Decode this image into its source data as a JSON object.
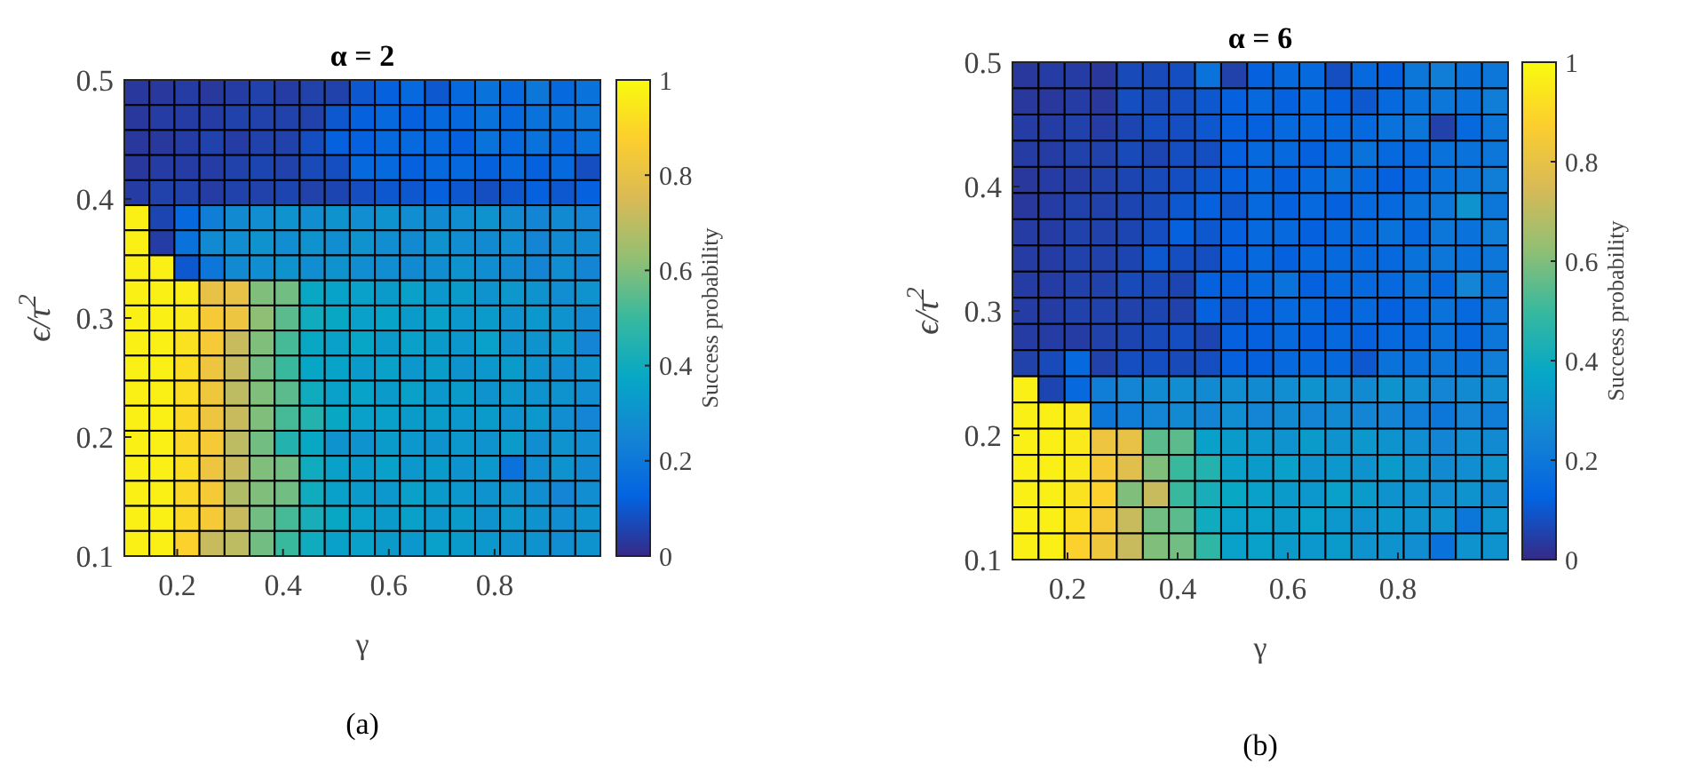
{
  "chart_data": [
    {
      "type": "heatmap",
      "title": "α = 2",
      "xlabel": "γ",
      "ylabel": "ϵ/τ$^{2}$",
      "clabel": "Success probability",
      "annotations": [
        "(a)"
      ],
      "xlim": [
        0.1,
        1.0
      ],
      "ylim": [
        0.1,
        0.5
      ],
      "xticks": [
        0.2,
        0.4,
        0.6,
        0.8
      ],
      "yticks": [
        0.1,
        0.2,
        0.3,
        0.4,
        0.5
      ],
      "clim": [
        0,
        1
      ],
      "cticks": [
        0,
        0.2,
        0.4,
        0.6,
        0.8,
        1
      ],
      "cells": [
        [
          0.03,
          0.03,
          0.04,
          0.03,
          0.04,
          0.05,
          0.04,
          0.05,
          0.05,
          0.1,
          0.12,
          0.15,
          0.1,
          0.15,
          0.18,
          0.15,
          0.2,
          0.15,
          0.18
        ],
        [
          0.03,
          0.04,
          0.04,
          0.04,
          0.05,
          0.05,
          0.05,
          0.05,
          0.1,
          0.12,
          0.15,
          0.12,
          0.15,
          0.15,
          0.18,
          0.15,
          0.18,
          0.18,
          0.2
        ],
        [
          0.03,
          0.03,
          0.04,
          0.05,
          0.04,
          0.05,
          0.05,
          0.08,
          0.12,
          0.12,
          0.15,
          0.15,
          0.15,
          0.12,
          0.18,
          0.15,
          0.18,
          0.15,
          0.18
        ],
        [
          0.03,
          0.04,
          0.04,
          0.04,
          0.05,
          0.06,
          0.05,
          0.07,
          0.08,
          0.15,
          0.15,
          0.12,
          0.15,
          0.15,
          0.12,
          0.15,
          0.12,
          0.15,
          0.08
        ],
        [
          0.04,
          0.05,
          0.05,
          0.04,
          0.05,
          0.05,
          0.06,
          0.05,
          0.06,
          0.08,
          0.1,
          0.1,
          0.12,
          0.1,
          0.08,
          0.1,
          0.12,
          0.1,
          0.12
        ],
        [
          0.97,
          0.06,
          0.15,
          0.22,
          0.27,
          0.28,
          0.3,
          0.28,
          0.3,
          0.28,
          0.3,
          0.28,
          0.27,
          0.28,
          0.3,
          0.27,
          0.25,
          0.27,
          0.25
        ],
        [
          0.97,
          0.04,
          0.18,
          0.27,
          0.28,
          0.3,
          0.28,
          0.3,
          0.28,
          0.3,
          0.28,
          0.27,
          0.3,
          0.28,
          0.27,
          0.28,
          0.25,
          0.27,
          0.27
        ],
        [
          0.97,
          0.97,
          0.1,
          0.2,
          0.27,
          0.28,
          0.3,
          0.28,
          0.3,
          0.28,
          0.28,
          0.27,
          0.28,
          0.3,
          0.28,
          0.27,
          0.25,
          0.28,
          0.25
        ],
        [
          0.97,
          0.97,
          0.96,
          0.8,
          0.8,
          0.6,
          0.58,
          0.38,
          0.36,
          0.35,
          0.33,
          0.35,
          0.32,
          0.33,
          0.3,
          0.32,
          0.3,
          0.28,
          0.3
        ],
        [
          0.97,
          0.97,
          0.95,
          0.85,
          0.82,
          0.62,
          0.55,
          0.4,
          0.38,
          0.35,
          0.36,
          0.33,
          0.35,
          0.32,
          0.33,
          0.3,
          0.32,
          0.3,
          0.27
        ],
        [
          0.97,
          0.97,
          0.93,
          0.85,
          0.72,
          0.6,
          0.52,
          0.38,
          0.35,
          0.37,
          0.33,
          0.35,
          0.33,
          0.32,
          0.35,
          0.3,
          0.3,
          0.32,
          0.25
        ],
        [
          0.97,
          0.97,
          0.92,
          0.82,
          0.72,
          0.58,
          0.5,
          0.37,
          0.36,
          0.33,
          0.35,
          0.32,
          0.34,
          0.3,
          0.32,
          0.33,
          0.3,
          0.28,
          0.3
        ],
        [
          0.97,
          0.97,
          0.92,
          0.83,
          0.7,
          0.6,
          0.55,
          0.4,
          0.35,
          0.36,
          0.33,
          0.35,
          0.32,
          0.33,
          0.3,
          0.32,
          0.3,
          0.3,
          0.28
        ],
        [
          0.97,
          0.97,
          0.9,
          0.82,
          0.72,
          0.6,
          0.52,
          0.45,
          0.38,
          0.35,
          0.35,
          0.33,
          0.34,
          0.32,
          0.33,
          0.3,
          0.32,
          0.28,
          0.25
        ],
        [
          0.97,
          0.97,
          0.9,
          0.85,
          0.7,
          0.58,
          0.45,
          0.38,
          0.3,
          0.3,
          0.33,
          0.32,
          0.3,
          0.32,
          0.3,
          0.33,
          0.28,
          0.3,
          0.28
        ],
        [
          0.97,
          0.97,
          0.92,
          0.82,
          0.72,
          0.6,
          0.58,
          0.4,
          0.35,
          0.33,
          0.35,
          0.32,
          0.33,
          0.3,
          0.32,
          0.18,
          0.28,
          0.3,
          0.27
        ],
        [
          0.97,
          0.97,
          0.9,
          0.85,
          0.68,
          0.6,
          0.58,
          0.4,
          0.35,
          0.33,
          0.32,
          0.35,
          0.33,
          0.32,
          0.3,
          0.3,
          0.28,
          0.25,
          0.28
        ],
        [
          0.97,
          0.97,
          0.9,
          0.85,
          0.72,
          0.58,
          0.52,
          0.42,
          0.38,
          0.35,
          0.33,
          0.35,
          0.32,
          0.33,
          0.3,
          0.32,
          0.3,
          0.28,
          0.3
        ],
        [
          0.97,
          0.97,
          0.88,
          0.72,
          0.7,
          0.58,
          0.5,
          0.4,
          0.35,
          0.35,
          0.33,
          0.32,
          0.35,
          0.33,
          0.32,
          0.3,
          0.3,
          0.28,
          0.3
        ]
      ]
    },
    {
      "type": "heatmap",
      "title": "α = 6",
      "xlabel": "γ",
      "ylabel": "ϵ/τ$^{2}$",
      "clabel": "Success probability",
      "annotations": [
        "(b)"
      ],
      "xlim": [
        0.1,
        1.0
      ],
      "ylim": [
        0.1,
        0.5
      ],
      "xticks": [
        0.2,
        0.4,
        0.6,
        0.8
      ],
      "yticks": [
        0.1,
        0.2,
        0.3,
        0.4,
        0.5
      ],
      "clim": [
        0,
        1
      ],
      "cticks": [
        0,
        0.2,
        0.4,
        0.6,
        0.8,
        1
      ],
      "cells": [
        [
          0.03,
          0.04,
          0.04,
          0.03,
          0.07,
          0.07,
          0.08,
          0.18,
          0.05,
          0.12,
          0.15,
          0.15,
          0.08,
          0.15,
          0.12,
          0.2,
          0.22,
          0.18,
          0.2
        ],
        [
          0.03,
          0.03,
          0.04,
          0.03,
          0.08,
          0.07,
          0.08,
          0.1,
          0.12,
          0.15,
          0.12,
          0.15,
          0.12,
          0.1,
          0.15,
          0.18,
          0.2,
          0.18,
          0.22
        ],
        [
          0.04,
          0.04,
          0.05,
          0.04,
          0.06,
          0.08,
          0.08,
          0.1,
          0.12,
          0.12,
          0.15,
          0.15,
          0.15,
          0.15,
          0.18,
          0.2,
          0.05,
          0.15,
          0.2
        ],
        [
          0.04,
          0.04,
          0.05,
          0.05,
          0.07,
          0.06,
          0.08,
          0.08,
          0.12,
          0.15,
          0.15,
          0.12,
          0.15,
          0.18,
          0.15,
          0.15,
          0.18,
          0.18,
          0.2
        ],
        [
          0.03,
          0.04,
          0.04,
          0.05,
          0.06,
          0.07,
          0.08,
          0.1,
          0.12,
          0.15,
          0.12,
          0.15,
          0.18,
          0.15,
          0.12,
          0.15,
          0.18,
          0.2,
          0.22
        ],
        [
          0.03,
          0.04,
          0.05,
          0.05,
          0.06,
          0.07,
          0.1,
          0.12,
          0.1,
          0.15,
          0.12,
          0.15,
          0.12,
          0.15,
          0.15,
          0.18,
          0.2,
          0.3,
          0.2
        ],
        [
          0.04,
          0.04,
          0.05,
          0.05,
          0.06,
          0.08,
          0.12,
          0.1,
          0.12,
          0.15,
          0.15,
          0.12,
          0.15,
          0.15,
          0.18,
          0.15,
          0.2,
          0.18,
          0.22
        ],
        [
          0.04,
          0.04,
          0.05,
          0.05,
          0.06,
          0.1,
          0.08,
          0.08,
          0.12,
          0.15,
          0.12,
          0.15,
          0.15,
          0.15,
          0.15,
          0.18,
          0.2,
          0.18,
          0.2
        ],
        [
          0.04,
          0.04,
          0.05,
          0.05,
          0.07,
          0.07,
          0.06,
          0.12,
          0.12,
          0.15,
          0.18,
          0.12,
          0.15,
          0.15,
          0.15,
          0.18,
          0.15,
          0.25,
          0.2
        ],
        [
          0.04,
          0.04,
          0.05,
          0.05,
          0.05,
          0.06,
          0.05,
          0.12,
          0.1,
          0.12,
          0.15,
          0.15,
          0.12,
          0.15,
          0.12,
          0.15,
          0.18,
          0.15,
          0.2
        ],
        [
          0.04,
          0.04,
          0.04,
          0.05,
          0.06,
          0.07,
          0.08,
          0.06,
          0.12,
          0.12,
          0.15,
          0.12,
          0.15,
          0.12,
          0.15,
          0.15,
          0.18,
          0.15,
          0.2
        ],
        [
          0.05,
          0.07,
          0.15,
          0.05,
          0.08,
          0.08,
          0.07,
          0.08,
          0.12,
          0.12,
          0.15,
          0.15,
          0.15,
          0.1,
          0.18,
          0.18,
          0.2,
          0.18,
          0.22
        ],
        [
          0.97,
          0.06,
          0.15,
          0.22,
          0.25,
          0.27,
          0.28,
          0.27,
          0.28,
          0.27,
          0.28,
          0.3,
          0.28,
          0.27,
          0.3,
          0.28,
          0.25,
          0.27,
          0.28
        ],
        [
          0.97,
          0.97,
          0.95,
          0.2,
          0.22,
          0.25,
          0.27,
          0.25,
          0.28,
          0.25,
          0.27,
          0.25,
          0.27,
          0.25,
          0.25,
          0.22,
          0.2,
          0.25,
          0.22
        ],
        [
          0.97,
          0.97,
          0.95,
          0.82,
          0.8,
          0.55,
          0.55,
          0.35,
          0.33,
          0.32,
          0.3,
          0.33,
          0.3,
          0.32,
          0.3,
          0.28,
          0.25,
          0.28,
          0.27
        ],
        [
          0.97,
          0.97,
          0.95,
          0.85,
          0.78,
          0.6,
          0.5,
          0.45,
          0.35,
          0.33,
          0.35,
          0.3,
          0.32,
          0.3,
          0.33,
          0.3,
          0.27,
          0.28,
          0.3
        ],
        [
          0.97,
          0.97,
          0.93,
          0.88,
          0.6,
          0.72,
          0.5,
          0.42,
          0.38,
          0.35,
          0.33,
          0.32,
          0.35,
          0.33,
          0.3,
          0.3,
          0.28,
          0.3,
          0.27
        ],
        [
          0.97,
          0.97,
          0.92,
          0.85,
          0.72,
          0.58,
          0.55,
          0.4,
          0.35,
          0.35,
          0.33,
          0.35,
          0.32,
          0.3,
          0.32,
          0.3,
          0.3,
          0.2,
          0.3
        ],
        [
          0.97,
          0.97,
          0.88,
          0.83,
          0.72,
          0.6,
          0.58,
          0.48,
          0.35,
          0.35,
          0.33,
          0.32,
          0.33,
          0.3,
          0.3,
          0.28,
          0.18,
          0.3,
          0.3
        ]
      ]
    }
  ]
}
